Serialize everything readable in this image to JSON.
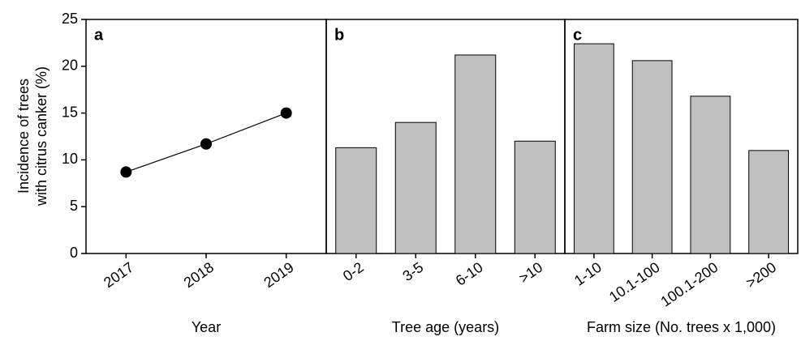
{
  "chart_data": [
    {
      "type": "line",
      "title": "a",
      "xlabel": "Year",
      "ylabel": [
        "Incidence of trees",
        "with citrus canker (%)"
      ],
      "categories": [
        "2017",
        "2018",
        "2019"
      ],
      "values": [
        8.7,
        11.7,
        15.0
      ],
      "color": "#000000",
      "ylim": [
        0,
        25
      ],
      "yticks": [
        0,
        5,
        10,
        15,
        20,
        25
      ]
    },
    {
      "type": "bar",
      "title": "b",
      "xlabel": "Tree age (years)",
      "categories": [
        "0-2",
        "3-5",
        "6-10",
        ">10"
      ],
      "values": [
        11.3,
        14.0,
        21.2,
        12.0
      ],
      "color": "#c0c0c0",
      "ylim": [
        0,
        25
      ]
    },
    {
      "type": "bar",
      "title": "c",
      "xlabel": "Farm size (No. trees x 1,000)",
      "categories": [
        "1-10",
        "10.1-100",
        "100.1-200",
        ">200"
      ],
      "values": [
        22.4,
        20.6,
        16.8,
        11.0
      ],
      "color": "#c0c0c0",
      "ylim": [
        0,
        25
      ]
    }
  ]
}
